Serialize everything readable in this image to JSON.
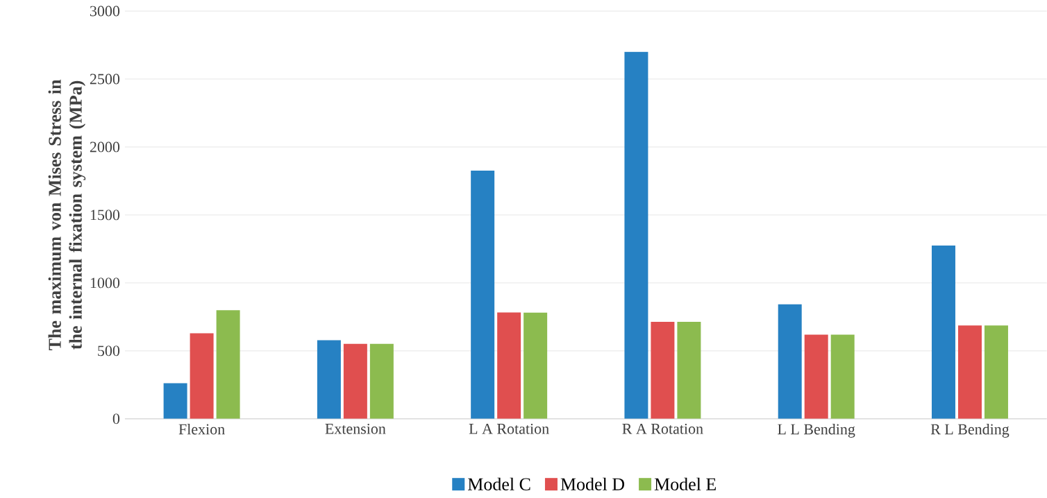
{
  "chart_data": {
    "type": "bar",
    "ylabel": "The maximum von Mises Stress in the internal fixation system (MPa)",
    "categories": [
      "Flexion",
      "Extension",
      "L A Rotation",
      "R A Rotation",
      "L L Bending",
      "R L Bending"
    ],
    "series": [
      {
        "name": "Model C",
        "color": "#2681c3",
        "values": [
          262,
          578,
          1826,
          2700,
          843,
          1275
        ]
      },
      {
        "name": "Model D",
        "color": "#e04f4f",
        "values": [
          629,
          551,
          782,
          714,
          619,
          687
        ]
      },
      {
        "name": "Model E",
        "color": "#8cbb4f",
        "values": [
          799,
          551,
          781,
          714,
          619,
          687
        ]
      }
    ],
    "ylim": [
      0,
      3000
    ],
    "yticks": [
      0,
      500,
      1000,
      1500,
      2000,
      2500,
      3000
    ],
    "grid": "y",
    "legend": "bottom"
  }
}
